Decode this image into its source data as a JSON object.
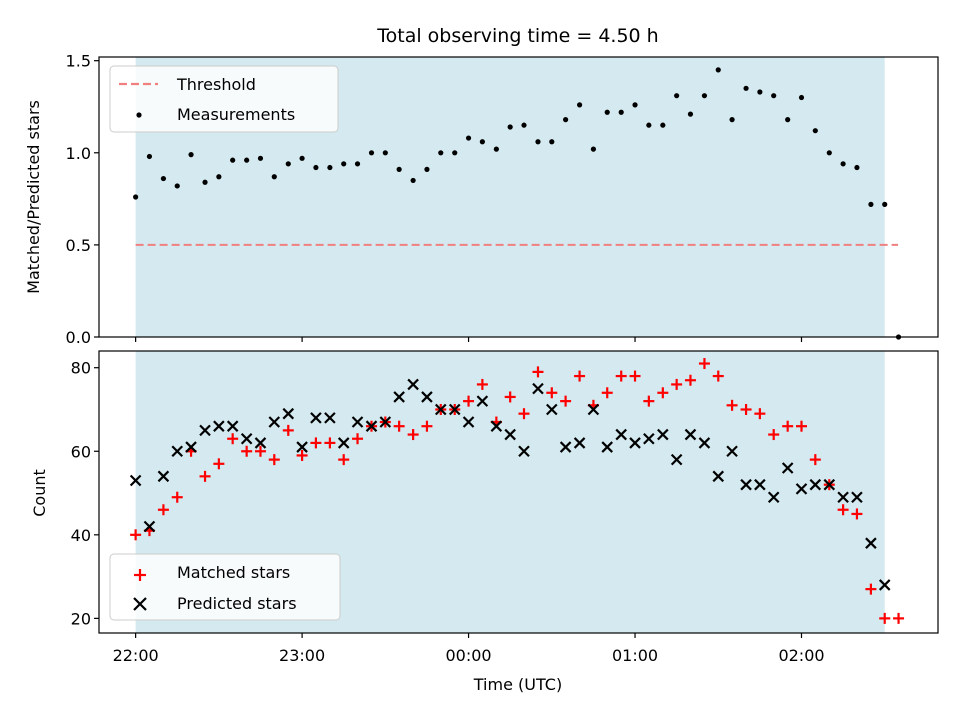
{
  "chart_data": [
    {
      "type": "scatter",
      "title": "Total observing time = 4.50 h",
      "xlabel": "",
      "ylabel": "Matched/Predicted stars",
      "xlim": [
        -0.22,
        4.82
      ],
      "ylim": [
        0,
        1.52
      ],
      "yticks": [
        0,
        0.5,
        1.0,
        1.5
      ],
      "ytick_labels": [
        "0.0",
        "0.5",
        "1.0",
        "1.5"
      ],
      "xticks": [
        0,
        1,
        2,
        3,
        4
      ],
      "shaded_region": {
        "x_start": 0.0,
        "x_end": 4.5,
        "color": "#d4eaf0"
      },
      "legend": {
        "position": "upper left",
        "entries": [
          "Threshold",
          "Measurements"
        ]
      },
      "threshold": {
        "name": "Threshold",
        "value": 0.5,
        "x_range": [
          0.0,
          4.58
        ],
        "color": "#f08080",
        "style": "dashed"
      },
      "measurements": {
        "name": "Measurements",
        "color": "#000000",
        "x": [
          0.0,
          0.083,
          0.167,
          0.25,
          0.333,
          0.417,
          0.5,
          0.583,
          0.667,
          0.75,
          0.833,
          0.917,
          1.0,
          1.083,
          1.167,
          1.25,
          1.333,
          1.417,
          1.5,
          1.583,
          1.667,
          1.75,
          1.833,
          1.917,
          2.0,
          2.083,
          2.167,
          2.25,
          2.333,
          2.417,
          2.5,
          2.583,
          2.667,
          2.75,
          2.833,
          2.917,
          3.0,
          3.083,
          3.167,
          3.25,
          3.333,
          3.417,
          3.5,
          3.583,
          3.667,
          3.75,
          3.833,
          3.917,
          4.0,
          4.083,
          4.167,
          4.25,
          4.333,
          4.417,
          4.5,
          4.583
        ],
        "y": [
          0.76,
          0.98,
          0.86,
          0.82,
          0.99,
          0.84,
          0.87,
          0.96,
          0.96,
          0.97,
          0.87,
          0.94,
          0.97,
          0.92,
          0.92,
          0.94,
          0.94,
          1.0,
          1.0,
          0.91,
          0.85,
          0.91,
          1.0,
          1.0,
          1.08,
          1.06,
          1.02,
          1.14,
          1.15,
          1.06,
          1.06,
          1.18,
          1.26,
          1.02,
          1.22,
          1.22,
          1.26,
          1.15,
          1.15,
          1.31,
          1.21,
          1.31,
          1.45,
          1.18,
          1.35,
          1.33,
          1.31,
          1.18,
          1.3,
          1.12,
          1.0,
          0.94,
          0.92,
          0.72,
          0.72,
          0.0
        ]
      }
    },
    {
      "type": "scatter",
      "title": "",
      "xlabel": "Time (UTC)",
      "ylabel": "Count",
      "xlim": [
        -0.22,
        4.82
      ],
      "ylim": [
        16.5,
        84
      ],
      "yticks": [
        20,
        40,
        60,
        80
      ],
      "ytick_labels": [
        "20",
        "40",
        "60",
        "80"
      ],
      "xticks": [
        0,
        1,
        2,
        3,
        4
      ],
      "xtick_labels": [
        "22:00",
        "23:00",
        "00:00",
        "01:00",
        "02:00"
      ],
      "shaded_region": {
        "x_start": 0.0,
        "x_end": 4.5,
        "color": "#d4eaf0"
      },
      "legend": {
        "position": "lower left",
        "entries": [
          "Matched stars",
          "Predicted stars"
        ]
      },
      "series": [
        {
          "name": "Matched stars",
          "marker": "plus",
          "color": "#ff0000",
          "x": [
            0.0,
            0.083,
            0.167,
            0.25,
            0.333,
            0.417,
            0.5,
            0.583,
            0.667,
            0.75,
            0.833,
            0.917,
            1.0,
            1.083,
            1.167,
            1.25,
            1.333,
            1.417,
            1.5,
            1.583,
            1.667,
            1.75,
            1.833,
            1.917,
            2.0,
            2.083,
            2.167,
            2.25,
            2.333,
            2.417,
            2.5,
            2.583,
            2.667,
            2.75,
            2.833,
            2.917,
            3.0,
            3.083,
            3.167,
            3.25,
            3.333,
            3.417,
            3.5,
            3.583,
            3.667,
            3.75,
            3.833,
            3.917,
            4.0,
            4.083,
            4.167,
            4.25,
            4.333,
            4.417,
            4.5,
            4.583
          ],
          "y": [
            40,
            41,
            46,
            49,
            60,
            54,
            57,
            63,
            60,
            60,
            58,
            65,
            59,
            62,
            62,
            58,
            63,
            66,
            67,
            66,
            64,
            66,
            70,
            70,
            72,
            76,
            67,
            73,
            69,
            79,
            74,
            72,
            78,
            71,
            74,
            78,
            78,
            72,
            74,
            76,
            77,
            81,
            78,
            71,
            70,
            69,
            64,
            66,
            66,
            58,
            52,
            46,
            45,
            27,
            20,
            20
          ]
        },
        {
          "name": "Predicted stars",
          "marker": "x",
          "color": "#000000",
          "x": [
            0.0,
            0.083,
            0.167,
            0.25,
            0.333,
            0.417,
            0.5,
            0.583,
            0.667,
            0.75,
            0.833,
            0.917,
            1.0,
            1.083,
            1.167,
            1.25,
            1.333,
            1.417,
            1.5,
            1.583,
            1.667,
            1.75,
            1.833,
            1.917,
            2.0,
            2.083,
            2.167,
            2.25,
            2.333,
            2.417,
            2.5,
            2.583,
            2.667,
            2.75,
            2.833,
            2.917,
            3.0,
            3.083,
            3.167,
            3.25,
            3.333,
            3.417,
            3.5,
            3.583,
            3.667,
            3.75,
            3.833,
            3.917,
            4.0,
            4.083,
            4.167,
            4.25,
            4.333,
            4.417,
            4.5
          ],
          "y": [
            53,
            42,
            54,
            60,
            61,
            65,
            66,
            66,
            63,
            62,
            67,
            69,
            61,
            68,
            68,
            62,
            67,
            66,
            67,
            73,
            76,
            73,
            70,
            70,
            67,
            72,
            66,
            64,
            60,
            75,
            70,
            61,
            62,
            70,
            61,
            64,
            62,
            63,
            64,
            58,
            64,
            62,
            54,
            60,
            52,
            52,
            49,
            56,
            51,
            52,
            52,
            49,
            49,
            38,
            28
          ]
        }
      ]
    }
  ]
}
